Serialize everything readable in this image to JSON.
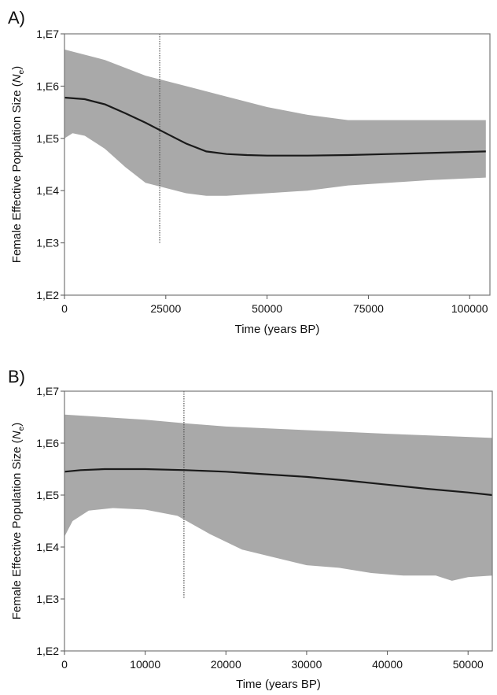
{
  "chart_data": [
    {
      "panel_label": "A)",
      "type": "area",
      "xlabel": "Time (years BP)",
      "ylabel_main": "Female Effective Population Size (",
      "ylabel_var": "N",
      "ylabel_sub": "e",
      "ylabel_close": ")",
      "xlim": [
        0,
        105000
      ],
      "ylim_log10": [
        2,
        7
      ],
      "y_scale": "log",
      "x_ticks": [
        0,
        25000,
        50000,
        75000,
        100000
      ],
      "x_tick_labels": [
        "0",
        "25000",
        "50000",
        "75000",
        "100000"
      ],
      "y_ticks_log10": [
        2,
        3,
        4,
        5,
        6,
        7
      ],
      "y_tick_labels": [
        "1,E2",
        "1,E3",
        "1,E4",
        "1,E5",
        "1,E6",
        "1,E7"
      ],
      "grid": false,
      "vline": {
        "x": 23500,
        "y_top_log10": 7,
        "y_bottom_log10": 3
      },
      "series": [
        {
          "role": "median",
          "x": [
            0,
            5000,
            10000,
            15000,
            20000,
            25000,
            30000,
            35000,
            40000,
            45000,
            50000,
            60000,
            70000,
            80000,
            90000,
            104000
          ],
          "y_log10": [
            5.78,
            5.75,
            5.65,
            5.48,
            5.3,
            5.1,
            4.9,
            4.75,
            4.7,
            4.68,
            4.67,
            4.67,
            4.68,
            4.7,
            4.72,
            4.75
          ]
        },
        {
          "role": "upper_95_hpd",
          "x": [
            0,
            10000,
            20000,
            30000,
            40000,
            50000,
            60000,
            70000,
            80000,
            90000,
            104000
          ],
          "y_log10": [
            6.7,
            6.5,
            6.2,
            6.0,
            5.8,
            5.6,
            5.45,
            5.35,
            5.35,
            5.35,
            5.35
          ]
        },
        {
          "role": "lower_95_hpd",
          "x": [
            0,
            2000,
            5000,
            10000,
            15000,
            20000,
            25000,
            30000,
            35000,
            40000,
            50000,
            60000,
            70000,
            80000,
            90000,
            104000
          ],
          "y_log10": [
            5.0,
            5.1,
            5.05,
            4.8,
            4.45,
            4.15,
            4.05,
            3.95,
            3.9,
            3.9,
            3.95,
            4.0,
            4.1,
            4.15,
            4.2,
            4.25
          ]
        }
      ]
    },
    {
      "panel_label": "B)",
      "type": "area",
      "xlabel": "Time (years BP)",
      "ylabel_main": "Female Effective Population Size (",
      "ylabel_var": "N",
      "ylabel_sub": "e",
      "ylabel_close": ")",
      "xlim": [
        0,
        53000
      ],
      "ylim_log10": [
        2,
        7
      ],
      "y_scale": "log",
      "x_ticks": [
        0,
        10000,
        20000,
        30000,
        40000,
        50000
      ],
      "x_tick_labels": [
        "0",
        "10000",
        "20000",
        "30000",
        "40000",
        "50000"
      ],
      "y_ticks_log10": [
        2,
        3,
        4,
        5,
        6,
        7
      ],
      "y_tick_labels": [
        "1,E2",
        "1,E3",
        "1,E4",
        "1,E5",
        "1,E6",
        "1,E7"
      ],
      "grid": false,
      "vline": {
        "x": 14800,
        "y_top_log10": 7,
        "y_bottom_log10": 3
      },
      "series": [
        {
          "role": "median",
          "x": [
            0,
            2000,
            5000,
            10000,
            15000,
            20000,
            25000,
            30000,
            35000,
            40000,
            45000,
            50000,
            53000
          ],
          "y_log10": [
            5.45,
            5.48,
            5.5,
            5.5,
            5.48,
            5.45,
            5.4,
            5.35,
            5.28,
            5.2,
            5.12,
            5.05,
            5.0
          ]
        },
        {
          "role": "upper_95_hpd",
          "x": [
            0,
            5000,
            10000,
            15000,
            20000,
            30000,
            40000,
            50000,
            53000
          ],
          "y_log10": [
            6.55,
            6.5,
            6.45,
            6.38,
            6.32,
            6.25,
            6.18,
            6.12,
            6.1
          ]
        },
        {
          "role": "lower_95_hpd",
          "x": [
            0,
            1000,
            3000,
            6000,
            10000,
            14000,
            18000,
            22000,
            26000,
            30000,
            34000,
            38000,
            42000,
            46000,
            48000,
            50000,
            53000
          ],
          "y_log10": [
            4.2,
            4.5,
            4.7,
            4.75,
            4.72,
            4.6,
            4.25,
            3.95,
            3.8,
            3.65,
            3.6,
            3.5,
            3.45,
            3.45,
            3.35,
            3.42,
            3.45
          ]
        }
      ]
    }
  ]
}
